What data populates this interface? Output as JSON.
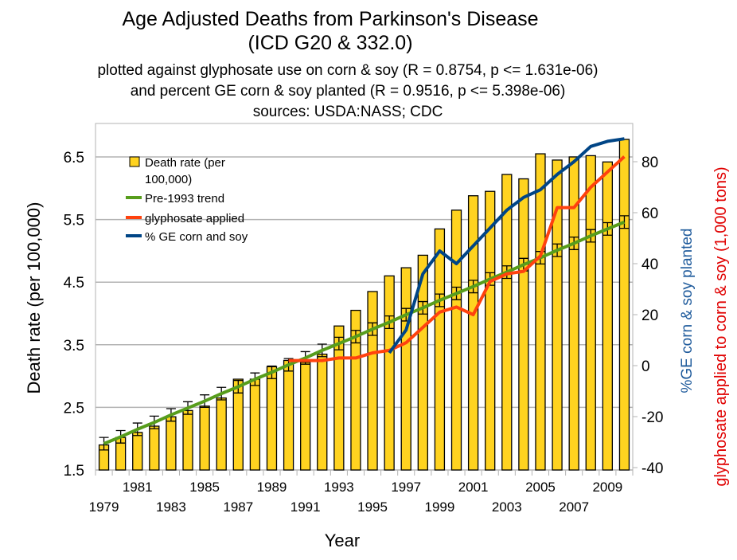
{
  "chart_data": {
    "type": "bar",
    "title": "Age Adjusted Deaths from Parkinson's Disease",
    "title_line2": "(ICD G20 & 332.0)",
    "subtitles": [
      "plotted against glyphosate use on corn & soy (R = 0.8754, p <= 1.631e-06)",
      "and percent GE corn & soy planted (R = 0.9516, p <= 5.398e-06)",
      "sources: USDA:NASS; CDC"
    ],
    "xlabel": "Year",
    "ylabel": "Death rate (per 100,000)",
    "y2label_blue": "%GE corn & soy planted",
    "y2label_red": "glyphosate applied to corn & soy (1,000 tons)",
    "ylim": [
      1.5,
      7.0
    ],
    "y2lim": [
      -40,
      95
    ],
    "yticks": [
      "1.5",
      "2.5",
      "3.5",
      "4.5",
      "5.5",
      "6.5"
    ],
    "y2ticks": [
      "-40",
      "-20",
      "0",
      "20",
      "40",
      "60",
      "80"
    ],
    "grid": true,
    "legend_position": "top-left",
    "colors": {
      "bar": "#ffd320",
      "trend": "#579d1c",
      "glyphosate": "#ff420e",
      "ge": "#004586",
      "grid": "#b3b3b3",
      "blue_label": "#1f5b9c",
      "red_label": "#e00000"
    },
    "categories": [
      "1979",
      "1980",
      "1981",
      "1982",
      "1983",
      "1984",
      "1985",
      "1986",
      "1987",
      "1988",
      "1989",
      "1990",
      "1991",
      "1992",
      "1993",
      "1994",
      "1995",
      "1996",
      "1997",
      "1998",
      "1999",
      "2000",
      "2001",
      "2002",
      "2003",
      "2004",
      "2005",
      "2006",
      "2007",
      "2008",
      "2009",
      "2010"
    ],
    "xtick_labels_top": [
      "1981",
      "1985",
      "1989",
      "1993",
      "1997",
      "2001",
      "2005",
      "2009"
    ],
    "xtick_labels_bottom": [
      "1979",
      "1983",
      "1987",
      "1991",
      "1995",
      "1999",
      "2003",
      "2007"
    ],
    "series": [
      {
        "name": "Death rate (per 100,000)",
        "type": "bar",
        "axis": "left",
        "values": [
          1.9,
          2.02,
          2.1,
          2.2,
          2.35,
          2.45,
          2.52,
          2.65,
          2.95,
          2.95,
          3.15,
          3.25,
          3.22,
          3.35,
          3.8,
          4.05,
          4.35,
          4.6,
          4.73,
          4.93,
          5.35,
          5.65,
          5.88,
          5.95,
          6.22,
          6.15,
          6.55,
          6.45,
          6.5,
          6.52,
          6.42,
          6.78
        ]
      },
      {
        "name": "Pre-1993 trend",
        "type": "line",
        "axis": "left",
        "values": [
          1.92,
          2.03,
          2.15,
          2.26,
          2.38,
          2.49,
          2.6,
          2.72,
          2.83,
          2.95,
          3.06,
          3.18,
          3.29,
          3.41,
          3.52,
          3.63,
          3.75,
          3.86,
          3.98,
          4.09,
          4.21,
          4.32,
          4.43,
          4.55,
          4.66,
          4.78,
          4.89,
          5.01,
          5.12,
          5.24,
          5.35,
          5.46
        ]
      },
      {
        "name": "glyphosate applied",
        "type": "line",
        "axis": "right",
        "values": [
          null,
          null,
          null,
          null,
          null,
          null,
          null,
          null,
          null,
          null,
          null,
          2,
          2,
          2,
          3,
          3,
          5,
          6,
          9,
          15,
          21,
          23,
          20,
          33,
          36,
          37,
          43,
          62,
          62,
          70,
          76,
          82
        ]
      },
      {
        "name": "% GE corn and soy",
        "type": "line",
        "axis": "right",
        "values": [
          null,
          null,
          null,
          null,
          null,
          null,
          null,
          null,
          null,
          null,
          null,
          null,
          null,
          null,
          null,
          null,
          null,
          5,
          14,
          36,
          45,
          40,
          47,
          54,
          61,
          66,
          69,
          75,
          80,
          86,
          88,
          89
        ]
      }
    ],
    "legend": [
      "Death rate (per",
      "100,000)",
      "Pre-1993 trend",
      "glyphosate applied",
      "% GE corn and soy"
    ]
  }
}
